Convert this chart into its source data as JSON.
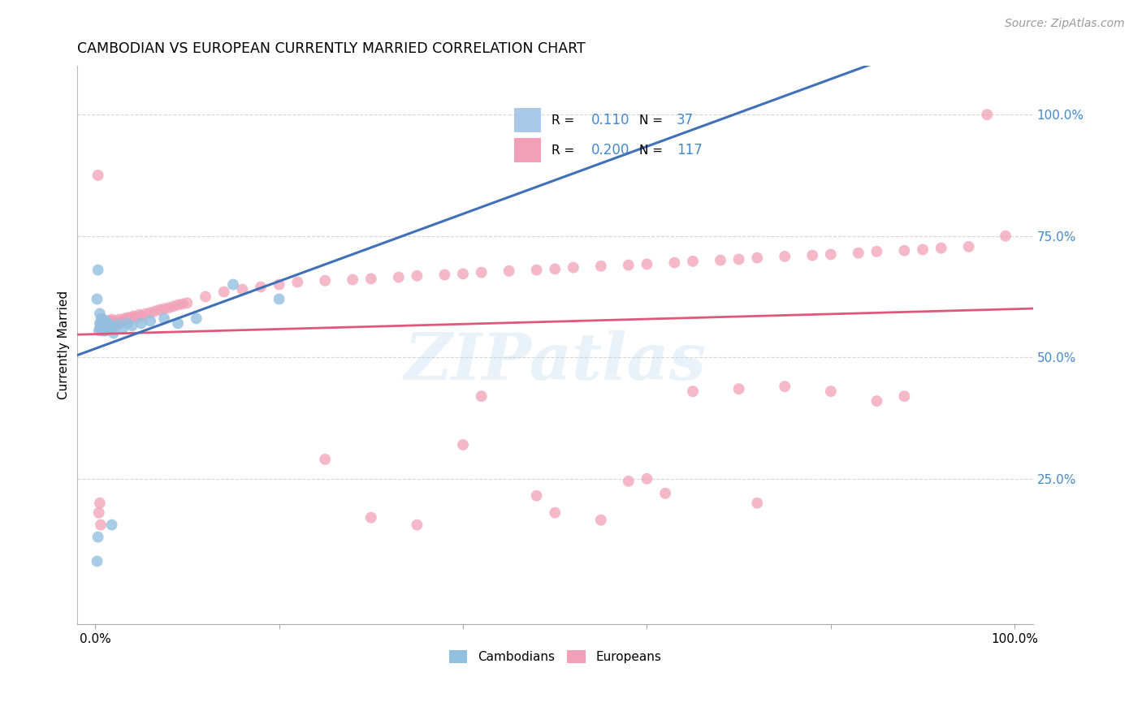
{
  "title": "CAMBODIAN VS EUROPEAN CURRENTLY MARRIED CORRELATION CHART",
  "source": "Source: ZipAtlas.com",
  "ylabel": "Currently Married",
  "watermark": "ZIPatlas",
  "legend_label1": "Cambodians",
  "legend_label2": "Europeans",
  "cambodian_scatter_color": "#92c0e0",
  "european_scatter_color": "#f2a0b8",
  "trendline_cambodian_solid_color": "#4070b8",
  "trendline_european_color": "#e05878",
  "trendline_dashed_color": "#92c0e0",
  "background_color": "#ffffff",
  "grid_color": "#cccccc",
  "ytick_color": "#4488cc",
  "legend_box1_color": "#aac8e8",
  "legend_box2_color": "#f2a0b8",
  "legend_R1": "0.110",
  "legend_N1": "37",
  "legend_R2": "0.200",
  "legend_N2": "117",
  "legend_text_color": "#4488cc",
  "xlim": [
    -0.02,
    1.02
  ],
  "ylim": [
    -0.05,
    1.1
  ],
  "yticks": [
    0.25,
    0.5,
    0.75,
    1.0
  ],
  "ytick_labels": [
    "25.0%",
    "50.0%",
    "75.0%",
    "100.0%"
  ]
}
